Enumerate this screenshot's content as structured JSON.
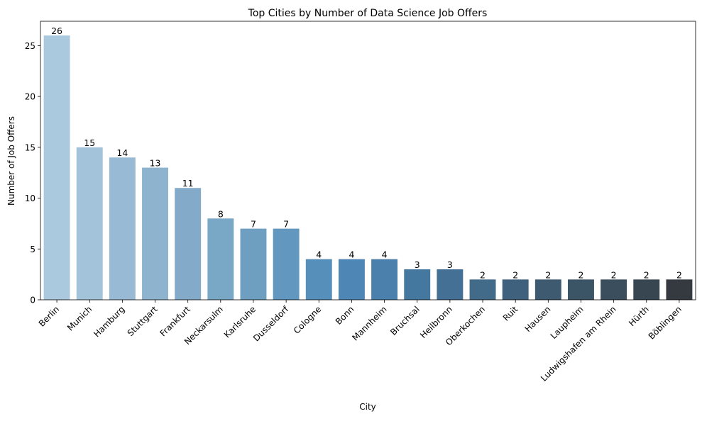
{
  "chart_data": {
    "type": "bar",
    "title": "Top Cities by Number of Data Science Job Offers",
    "xlabel": "City",
    "ylabel": "Number of Job Offers",
    "ylim": [
      0,
      27.4
    ],
    "yticks": [
      0,
      5,
      10,
      15,
      20,
      25
    ],
    "categories": [
      "Berlin",
      "Munich",
      "Hamburg",
      "Stuttgart",
      "Frankfurt",
      "Neckarsulm",
      "Karlsruhe",
      "Dusseldorf",
      "Cologne",
      "Bonn",
      "Mannheim",
      "Bruchsal",
      "Heilbronn",
      "Oberkochen",
      "Ruit",
      "Hausen",
      "Laupheim",
      "Ludwigshafen am Rhein",
      "Hürth",
      "Böblingen"
    ],
    "values": [
      26,
      15,
      14,
      13,
      11,
      8,
      7,
      7,
      4,
      4,
      4,
      3,
      3,
      2,
      2,
      2,
      2,
      2,
      2,
      2
    ],
    "colors": [
      "#abc9de",
      "#a2c3da",
      "#98bad5",
      "#8db3cf",
      "#84aaca",
      "#79a7c6",
      "#6e9fc1",
      "#6297bf",
      "#578fbb",
      "#4e87b6",
      "#4a80ab",
      "#45789f",
      "#437094",
      "#426a89",
      "#3f617d",
      "#3d5a71",
      "#3c5566",
      "#3a4e5d",
      "#374651",
      "#343a40"
    ],
    "grid": false,
    "data_labels": true
  }
}
